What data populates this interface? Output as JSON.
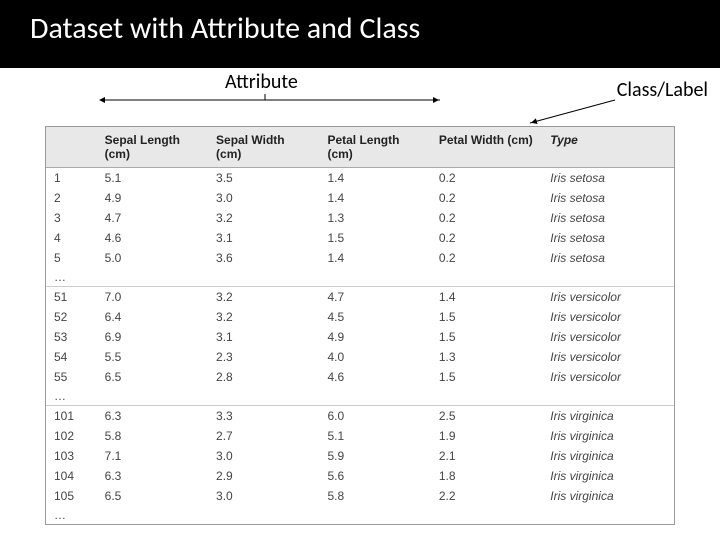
{
  "title": "Dataset with Attribute and Class",
  "labels": {
    "attribute": "Attribute",
    "class": "Class/Label"
  },
  "table": {
    "columns": [
      {
        "key": "idx",
        "label": ""
      },
      {
        "key": "sl",
        "label": "Sepal Length (cm)"
      },
      {
        "key": "sw",
        "label": "Sepal Width (cm)"
      },
      {
        "key": "pl",
        "label": "Petal Length (cm)"
      },
      {
        "key": "pw",
        "label": "Petal Width (cm)"
      },
      {
        "key": "type",
        "label": "Type"
      }
    ],
    "groups": [
      {
        "rows": [
          [
            "1",
            "5.1",
            "3.5",
            "1.4",
            "0.2",
            "Iris setosa"
          ],
          [
            "2",
            "4.9",
            "3.0",
            "1.4",
            "0.2",
            "Iris setosa"
          ],
          [
            "3",
            "4.7",
            "3.2",
            "1.3",
            "0.2",
            "Iris setosa"
          ],
          [
            "4",
            "4.6",
            "3.1",
            "1.5",
            "0.2",
            "Iris setosa"
          ],
          [
            "5",
            "5.0",
            "3.6",
            "1.4",
            "0.2",
            "Iris setosa"
          ]
        ],
        "ellipsis": "…"
      },
      {
        "rows": [
          [
            "51",
            "7.0",
            "3.2",
            "4.7",
            "1.4",
            "Iris versicolor"
          ],
          [
            "52",
            "6.4",
            "3.2",
            "4.5",
            "1.5",
            "Iris versicolor"
          ],
          [
            "53",
            "6.9",
            "3.1",
            "4.9",
            "1.5",
            "Iris versicolor"
          ],
          [
            "54",
            "5.5",
            "2.3",
            "4.0",
            "1.3",
            "Iris versicolor"
          ],
          [
            "55",
            "6.5",
            "2.8",
            "4.6",
            "1.5",
            "Iris versicolor"
          ]
        ],
        "ellipsis": "…"
      },
      {
        "rows": [
          [
            "101",
            "6.3",
            "3.3",
            "6.0",
            "2.5",
            "Iris virginica"
          ],
          [
            "102",
            "5.8",
            "2.7",
            "5.1",
            "1.9",
            "Iris virginica"
          ],
          [
            "103",
            "7.1",
            "3.0",
            "5.9",
            "2.1",
            "Iris virginica"
          ],
          [
            "104",
            "6.3",
            "2.9",
            "5.6",
            "1.8",
            "Iris virginica"
          ],
          [
            "105",
            "6.5",
            "3.0",
            "5.8",
            "2.2",
            "Iris virginica"
          ]
        ],
        "ellipsis": "…"
      }
    ]
  },
  "style": {
    "header_bg": "#000000",
    "header_fg": "#ffffff",
    "title_fontsize": 30,
    "label_fontsize": 20,
    "table_header_bg": "#e8e8e8",
    "table_border": "#999999",
    "row_sep_color": "#cccccc",
    "cell_fontsize": 12,
    "type_italic": true,
    "arrow_color": "#000000",
    "arrow_stroke": 1
  }
}
